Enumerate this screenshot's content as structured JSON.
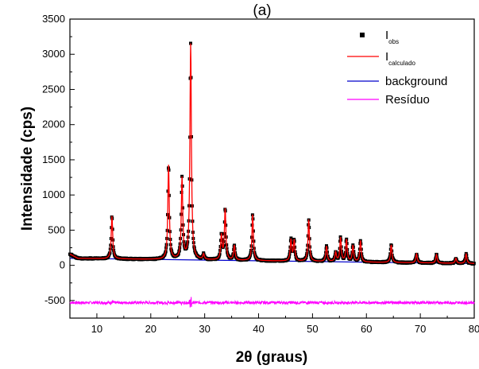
{
  "chart_data": {
    "type": "line",
    "panel_label": "(a)",
    "xlabel": "2θ (graus)",
    "ylabel": "Intensidade (cps)",
    "xlim": [
      5,
      80
    ],
    "ylim": [
      -750,
      3500
    ],
    "x_ticks": [
      10,
      20,
      30,
      40,
      50,
      60,
      70,
      80
    ],
    "y_ticks": [
      -500,
      0,
      500,
      1000,
      1500,
      2000,
      2500,
      3000,
      3500
    ],
    "legend_position": "top-right",
    "grid": false,
    "peaks": [
      {
        "x": 12.8,
        "y": 700
      },
      {
        "x": 23.3,
        "y": 1420
      },
      {
        "x": 25.8,
        "y": 1230
      },
      {
        "x": 27.4,
        "y": 3140
      },
      {
        "x": 29.8,
        "y": 150
      },
      {
        "x": 33.1,
        "y": 420
      },
      {
        "x": 33.8,
        "y": 790
      },
      {
        "x": 35.5,
        "y": 280
      },
      {
        "x": 38.9,
        "y": 720
      },
      {
        "x": 46.0,
        "y": 360
      },
      {
        "x": 46.6,
        "y": 350
      },
      {
        "x": 49.3,
        "y": 650
      },
      {
        "x": 52.6,
        "y": 270
      },
      {
        "x": 54.3,
        "y": 180
      },
      {
        "x": 55.2,
        "y": 390
      },
      {
        "x": 56.3,
        "y": 360
      },
      {
        "x": 57.5,
        "y": 280
      },
      {
        "x": 58.9,
        "y": 350
      },
      {
        "x": 64.6,
        "y": 290
      },
      {
        "x": 69.3,
        "y": 160
      },
      {
        "x": 73.0,
        "y": 150
      },
      {
        "x": 76.6,
        "y": 100
      },
      {
        "x": 78.5,
        "y": 160
      }
    ],
    "background_level": {
      "start": 100,
      "end": 25
    },
    "residual_offset": -530,
    "series": [
      {
        "name": "I",
        "subscript": "obs",
        "color": "#000000",
        "marker": "square"
      },
      {
        "name": "I",
        "subscript": "calculado",
        "color": "#ff0000",
        "marker": "line"
      },
      {
        "name": "background",
        "color": "#0000cc",
        "marker": "line"
      },
      {
        "name": "Resíduo",
        "color": "#ff00ff",
        "marker": "line"
      }
    ]
  }
}
